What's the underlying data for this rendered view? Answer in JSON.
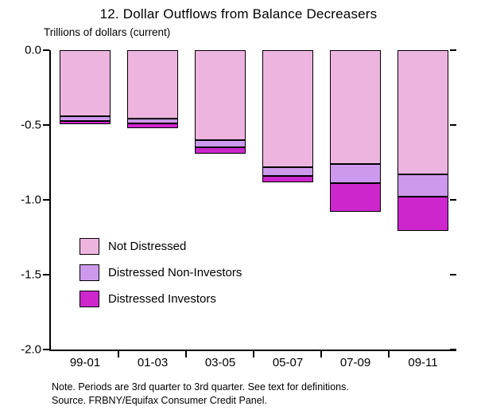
{
  "title": "12. Dollar Outflows from Balance Decreasers",
  "units_label": "Trillions of dollars (current)",
  "notes": {
    "note_line": "Note. Periods are 3rd quarter to 3rd quarter.  See text for definitions.",
    "source_line": "Source. FRBNY/Equifax Consumer Credit Panel."
  },
  "chart_data": {
    "type": "bar",
    "stacked": true,
    "orientation": "vertical-negative",
    "title": "12. Dollar Outflows from Balance Decreasers",
    "ylabel": "Trillions of dollars (current)",
    "categories": [
      "99-01",
      "01-03",
      "03-05",
      "05-07",
      "07-09",
      "09-11"
    ],
    "series": [
      {
        "name": "Not Distressed",
        "color": "#eeb4e0",
        "values": [
          -0.44,
          -0.46,
          -0.6,
          -0.78,
          -0.76,
          -0.83
        ]
      },
      {
        "name": "Distressed Non-Investors",
        "color": "#cc99ec",
        "values": [
          -0.03,
          -0.03,
          -0.05,
          -0.06,
          -0.13,
          -0.15
        ]
      },
      {
        "name": "Distressed Investors",
        "color": "#cc26cc",
        "values": [
          -0.02,
          -0.03,
          -0.04,
          -0.04,
          -0.19,
          -0.23
        ]
      }
    ],
    "totals": [
      -0.49,
      -0.52,
      -0.69,
      -0.88,
      -1.08,
      -1.21
    ],
    "ylim": [
      -2.0,
      0.0
    ],
    "yticks": [
      "0.0",
      "-0.5",
      "-1.0",
      "-1.5",
      "-2.0"
    ],
    "grid": false,
    "legend_position": "inside-lower-left"
  }
}
